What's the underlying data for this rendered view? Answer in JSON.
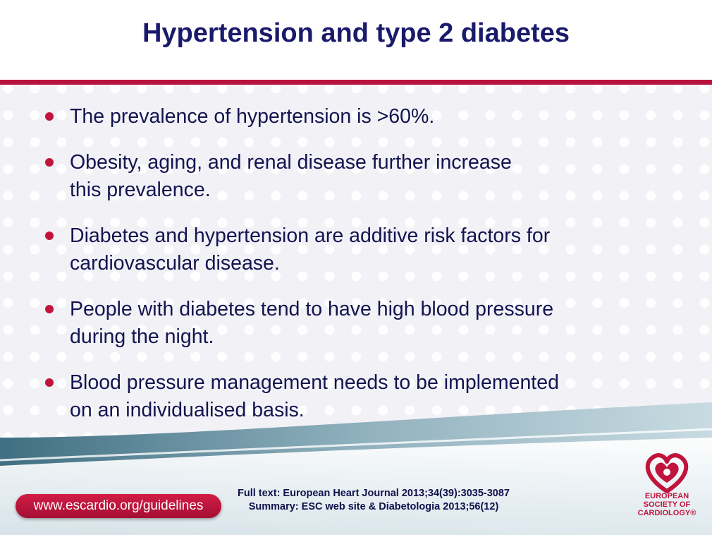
{
  "slide": {
    "title": "Hypertension and type 2 diabetes",
    "bullets": [
      {
        "line1": "The prevalence of hypertension is >60%.",
        "line2": ""
      },
      {
        "line1": "Obesity, aging, and renal disease further increase",
        "line2": "this prevalence."
      },
      {
        "line1": "Diabetes and hypertension are additive risk factors for",
        "line2": "cardiovascular disease."
      },
      {
        "line1": "People with diabetes tend to have high blood pressure",
        "line2": "during the night."
      },
      {
        "line1": "Blood pressure management needs to be implemented",
        "line2": "on an individualised basis."
      }
    ]
  },
  "footer": {
    "url": "www.escardio.org/guidelines",
    "ref_line1": "Full text: European Heart Journal 2013;34(39):3035-3087",
    "ref_line2": "Summary: ESC web site & Diabetologia 2013;56(12)"
  },
  "logo": {
    "line1": "EUROPEAN",
    "line2": "SOCIETY OF",
    "line3": "CARDIOLOGY®",
    "icon": "heart-logo-icon",
    "color": "#c0143c"
  },
  "colors": {
    "title": "#1a1a6b",
    "accent": "#b8123f",
    "text": "#141450"
  }
}
